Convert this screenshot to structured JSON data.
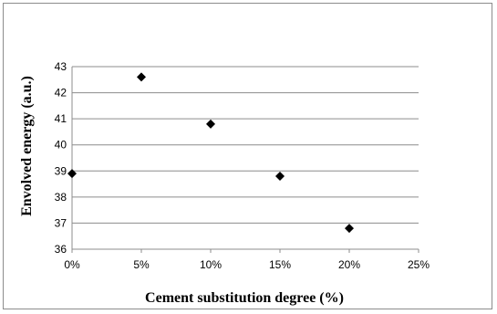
{
  "chart_data": {
    "type": "scatter",
    "title": "",
    "xlabel": "Cement substitution degree (%)",
    "ylabel": "Envolved energy (a.u.)",
    "xlim": [
      0,
      25
    ],
    "ylim": [
      36,
      43
    ],
    "x_ticks": [
      "0%",
      "5%",
      "10%",
      "15%",
      "20%",
      "25%"
    ],
    "y_ticks": [
      "36",
      "37",
      "38",
      "39",
      "40",
      "41",
      "42",
      "43"
    ],
    "grid": "horizontal",
    "marker": "diamond",
    "marker_color": "#000000",
    "series": [
      {
        "points": [
          {
            "x": 0,
            "y": 38.9
          },
          {
            "x": 5,
            "y": 42.6
          },
          {
            "x": 10,
            "y": 40.8
          },
          {
            "x": 15,
            "y": 38.8
          },
          {
            "x": 20,
            "y": 36.8
          }
        ]
      }
    ]
  }
}
